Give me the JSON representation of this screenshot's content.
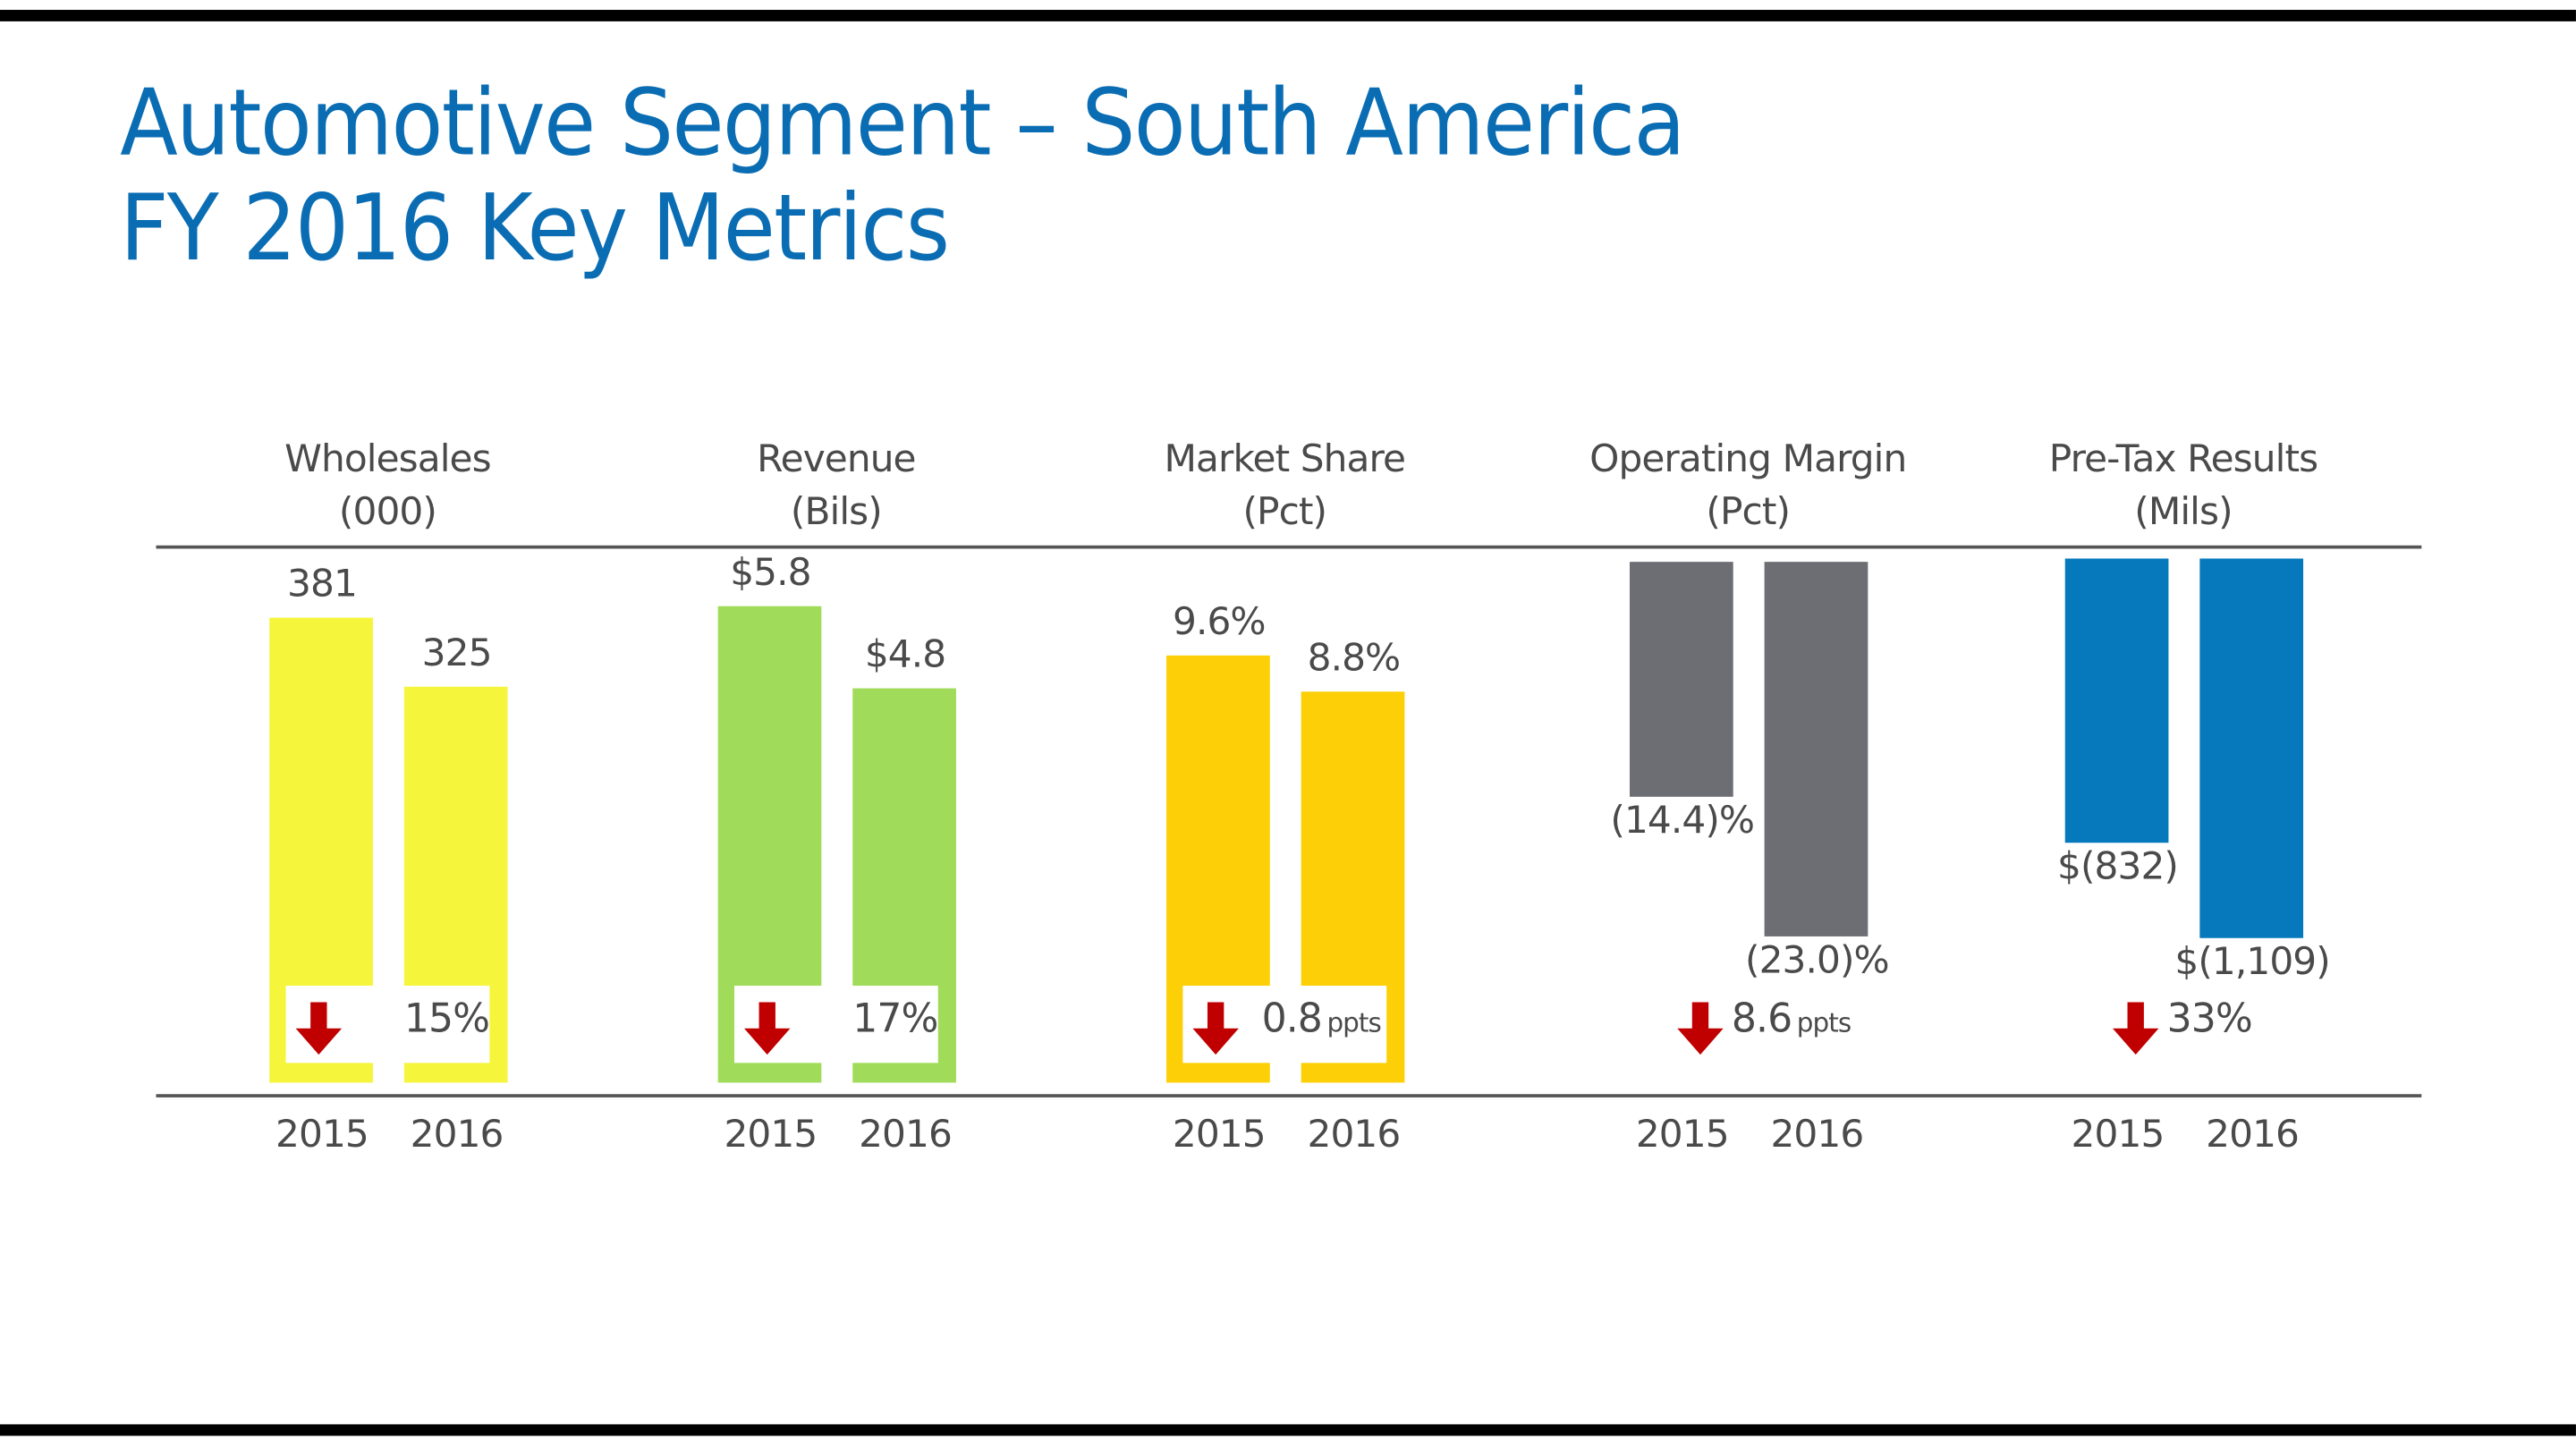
{
  "title": {
    "line1": "Automotive Segment – South America",
    "line2": "FY 2016 Key Metrics"
  },
  "chart_data": [
    {
      "type": "bar",
      "title": "Wholesales",
      "unit_label": "(000)",
      "categories": [
        "2015",
        "2016"
      ],
      "values": [
        381,
        325
      ],
      "data_labels": [
        "381",
        "325"
      ],
      "color": "#f5f53c",
      "change": {
        "direction": "down",
        "value": "15%",
        "unit": ""
      }
    },
    {
      "type": "bar",
      "title": "Revenue",
      "unit_label": "(Bils)",
      "categories": [
        "2015",
        "2016"
      ],
      "values": [
        5.8,
        4.8
      ],
      "data_labels": [
        "$5.8",
        "$4.8"
      ],
      "color": "#a0dc5a",
      "change": {
        "direction": "down",
        "value": "17%",
        "unit": ""
      }
    },
    {
      "type": "bar",
      "title": "Market Share",
      "unit_label": "(Pct)",
      "categories": [
        "2015",
        "2016"
      ],
      "values": [
        9.6,
        8.8
      ],
      "data_labels": [
        "9.6%",
        "8.8%"
      ],
      "color": "#fccf07",
      "change": {
        "direction": "down",
        "value": "0.8",
        "unit": "ppts"
      }
    },
    {
      "type": "bar",
      "title": "Operating Margin",
      "unit_label": "(Pct)",
      "categories": [
        "2015",
        "2016"
      ],
      "values": [
        -14.4,
        -23.0
      ],
      "data_labels": [
        "(14.4)%",
        "(23.0)%"
      ],
      "color": "#6d6e74",
      "change": {
        "direction": "down",
        "value": "8.6",
        "unit": "ppts"
      }
    },
    {
      "type": "bar",
      "title": "Pre-Tax Results",
      "unit_label": "(Mils)",
      "categories": [
        "2015",
        "2016"
      ],
      "values": [
        -832,
        -1109
      ],
      "data_labels": [
        "$(832)",
        "$(1,109)"
      ],
      "color": "#0579bb",
      "change": {
        "direction": "down",
        "value": "33%",
        "unit": ""
      }
    }
  ],
  "colors": {
    "title": "#0a6db3",
    "arrow": "#c00000"
  }
}
